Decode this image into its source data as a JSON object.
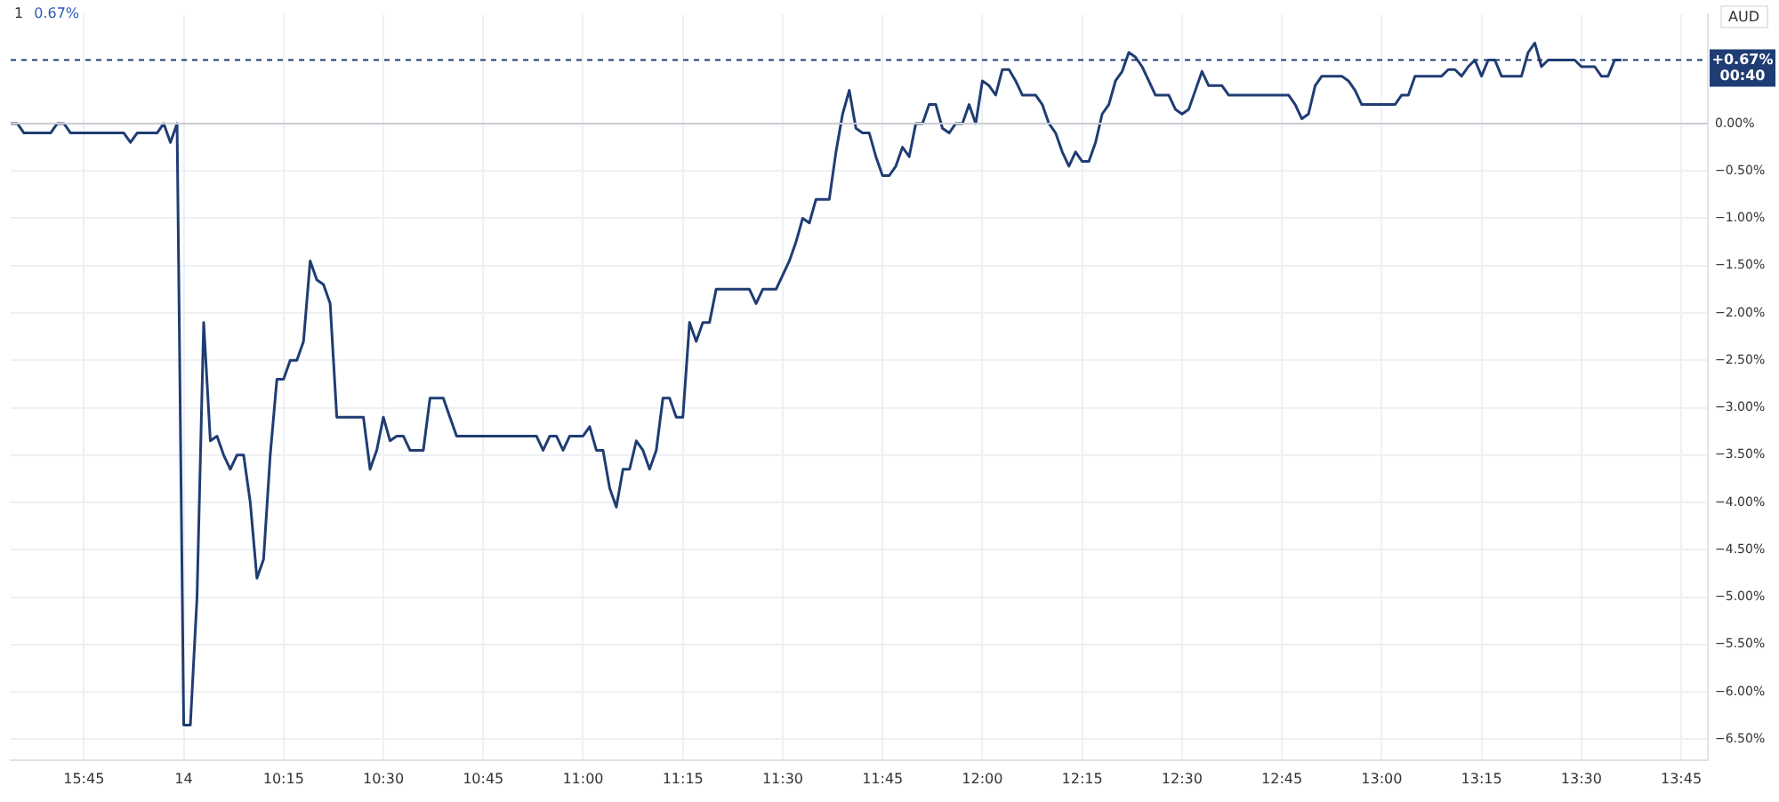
{
  "chart_data": {
    "type": "line",
    "title": "1",
    "subtitle": "0.67%",
    "annotations": [
      "AUD",
      "00:40"
    ],
    "categories": [
      null,
      null,
      null,
      null,
      null,
      null,
      null,
      null,
      null,
      null,
      null,
      "15:45",
      null,
      null,
      null,
      null,
      null,
      null,
      null,
      null,
      null,
      null,
      null,
      null,
      null,
      null,
      "14",
      null,
      null,
      null,
      null,
      null,
      null,
      null,
      null,
      null,
      null,
      null,
      null,
      null,
      null,
      "10:15",
      null,
      null,
      null,
      null,
      null,
      null,
      null,
      null,
      null,
      null,
      null,
      null,
      null,
      null,
      "10:30",
      null,
      null,
      null,
      null,
      null,
      null,
      null,
      null,
      null,
      null,
      null,
      null,
      null,
      null,
      "10:45",
      null,
      null,
      null,
      null,
      null,
      null,
      null,
      null,
      null,
      null,
      null,
      null,
      null,
      null,
      "11:00",
      null,
      null,
      null,
      null,
      null,
      null,
      null,
      null,
      null,
      null,
      null,
      null,
      null,
      null,
      "11:15",
      null,
      null,
      null,
      null,
      null,
      null,
      null,
      null,
      null,
      null,
      null,
      null,
      null,
      null,
      "11:30",
      null,
      null,
      null,
      null,
      null,
      null,
      null,
      null,
      null,
      null,
      null,
      null,
      null,
      null,
      "11:45",
      null,
      null,
      null,
      null,
      null,
      null,
      null,
      null,
      null,
      null,
      null,
      null,
      null,
      null,
      "12:00",
      null,
      null,
      null,
      null,
      null,
      null,
      null,
      null,
      null,
      null,
      null,
      null,
      null,
      null,
      "12:15",
      null,
      null,
      null,
      null,
      null,
      null,
      null,
      null,
      null,
      null,
      null,
      null,
      null,
      null,
      "12:30",
      null,
      null,
      null,
      null,
      null,
      null,
      null,
      null,
      null,
      null,
      null,
      null,
      null,
      null,
      "12:45",
      null,
      null,
      null,
      null,
      null,
      null,
      null,
      null,
      null,
      null,
      null,
      null,
      null,
      null,
      "13:00",
      null,
      null,
      null,
      null,
      null,
      null,
      null,
      null,
      null,
      null,
      null,
      null,
      null,
      null,
      "13:15",
      null,
      null,
      null,
      null,
      null,
      null,
      null,
      null,
      null,
      null,
      null,
      null,
      null,
      null,
      "13:30",
      null,
      null,
      null,
      null,
      null,
      null,
      null,
      null,
      null,
      null,
      null,
      null,
      null,
      null,
      "13:45",
      null,
      null,
      null,
      null
    ],
    "series": [
      {
        "color": "#1f3d73",
        "values": [
          0,
          0,
          -0.1,
          -0.1,
          -0.1,
          -0.1,
          -0.1,
          0,
          0,
          -0.1,
          -0.1,
          -0.1,
          -0.1,
          -0.1,
          -0.1,
          -0.1,
          -0.1,
          -0.1,
          -0.2,
          -0.1,
          -0.1,
          -0.1,
          -0.1,
          0,
          -0.2,
          0,
          -6.35,
          -6.35,
          -5.0,
          -2.1,
          -3.35,
          -3.3,
          -3.5,
          -3.65,
          -3.5,
          -3.5,
          -4.0,
          -4.8,
          -4.6,
          -3.5,
          -2.7,
          -2.7,
          -2.5,
          -2.5,
          -2.3,
          -1.45,
          -1.65,
          -1.7,
          -1.9,
          -3.1,
          -3.1,
          -3.1,
          -3.1,
          -3.1,
          -3.65,
          -3.45,
          -3.1,
          -3.35,
          -3.3,
          -3.3,
          -3.45,
          -3.45,
          -3.45,
          -2.9,
          -2.9,
          -2.9,
          -3.1,
          -3.3,
          -3.3,
          -3.3,
          -3.3,
          -3.3,
          -3.3,
          -3.3,
          -3.3,
          -3.3,
          -3.3,
          -3.3,
          -3.3,
          -3.3,
          -3.45,
          -3.3,
          -3.3,
          -3.45,
          -3.3,
          -3.3,
          -3.3,
          -3.2,
          -3.45,
          -3.45,
          -3.85,
          -4.05,
          -3.65,
          -3.65,
          -3.35,
          -3.45,
          -3.65,
          -3.45,
          -2.9,
          -2.9,
          -3.1,
          -3.1,
          -2.1,
          -2.3,
          -2.1,
          -2.1,
          -1.75,
          -1.75,
          -1.75,
          -1.75,
          -1.75,
          -1.75,
          -1.9,
          -1.75,
          -1.75,
          -1.75,
          -1.6,
          -1.45,
          -1.25,
          -1.0,
          -1.05,
          -0.8,
          -0.8,
          -0.8,
          -0.3,
          0.1,
          0.35,
          -0.05,
          -0.1,
          -0.1,
          -0.35,
          -0.55,
          -0.55,
          -0.45,
          -0.25,
          -0.35,
          0,
          0,
          0.2,
          0.2,
          -0.05,
          -0.1,
          0,
          0,
          0.2,
          0,
          0.45,
          0.4,
          0.3,
          0.57,
          0.57,
          0.45,
          0.3,
          0.3,
          0.3,
          0.2,
          0,
          -0.1,
          -0.3,
          -0.45,
          -0.3,
          -0.4,
          -0.4,
          -0.2,
          0.1,
          0.2,
          0.45,
          0.55,
          0.75,
          0.7,
          0.6,
          0.45,
          0.3,
          0.3,
          0.3,
          0.15,
          0.1,
          0.15,
          0.35,
          0.55,
          0.4,
          0.4,
          0.4,
          0.3,
          0.3,
          0.3,
          0.3,
          0.3,
          0.3,
          0.3,
          0.3,
          0.3,
          0.3,
          0.2,
          0.05,
          0.1,
          0.4,
          0.5,
          0.5,
          0.5,
          0.5,
          0.45,
          0.35,
          0.2,
          0.2,
          0.2,
          0.2,
          0.2,
          0.2,
          0.3,
          0.3,
          0.5,
          0.5,
          0.5,
          0.5,
          0.5,
          0.57,
          0.57,
          0.5,
          0.6,
          0.67,
          0.5,
          0.67,
          0.67,
          0.5,
          0.5,
          0.5,
          0.5,
          0.75,
          0.85,
          0.6,
          0.67,
          0.67,
          0.67,
          0.67,
          0.67,
          0.6,
          0.6,
          0.6,
          0.5,
          0.5,
          0.67,
          0.67,
          null,
          null,
          null,
          null,
          null,
          null,
          null,
          null,
          null,
          null,
          null,
          null,
          null
        ]
      }
    ],
    "ylim": [
      -6.72,
      1.15
    ],
    "yticks": [
      {
        "value": 0,
        "label": "0.00%"
      },
      {
        "value": -0.5,
        "label": "−0.50%"
      },
      {
        "value": -1,
        "label": "−1.00%"
      },
      {
        "value": -1.5,
        "label": "−1.50%"
      },
      {
        "value": -2,
        "label": "−2.00%"
      },
      {
        "value": -2.5,
        "label": "−2.50%"
      },
      {
        "value": -3,
        "label": "−3.00%"
      },
      {
        "value": -3.5,
        "label": "−3.50%"
      },
      {
        "value": -4,
        "label": "−4.00%"
      },
      {
        "value": -4.5,
        "label": "−4.50%"
      },
      {
        "value": -5,
        "label": "−5.00%"
      },
      {
        "value": -5.5,
        "label": "−5.50%"
      },
      {
        "value": -6,
        "label": "−6.00%"
      },
      {
        "value": -6.5,
        "label": "−6.50%"
      }
    ],
    "ref_lines": [
      {
        "axis": "y",
        "value": 0,
        "color": "#c9ccd3",
        "line_style": "solid"
      },
      {
        "axis": "y",
        "value": 0.67,
        "label": "+0.67%",
        "color": "#1f3d73",
        "line_style": "dashed"
      }
    ],
    "grid": true,
    "legend": false,
    "marker": "none",
    "line_style": "solid"
  }
}
